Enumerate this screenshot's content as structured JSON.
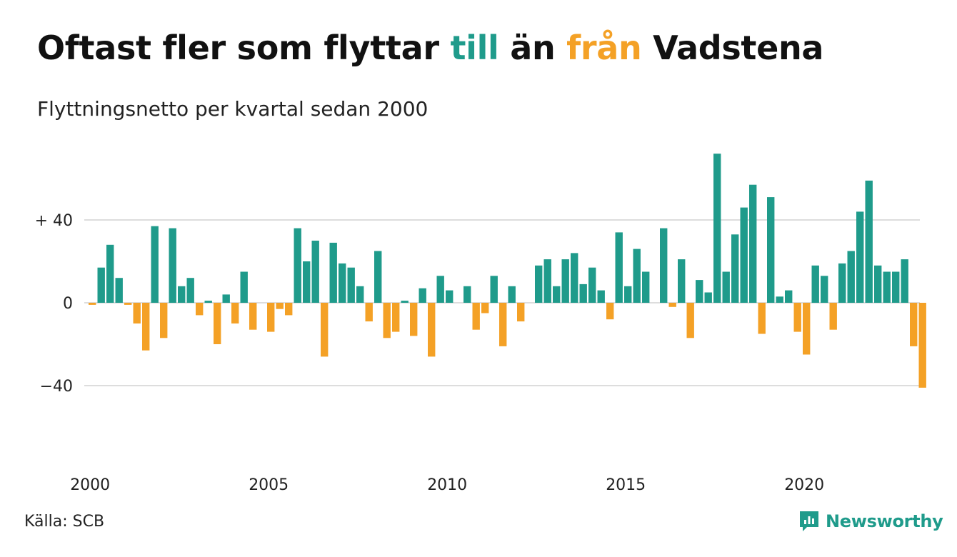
{
  "title": {
    "part1": "Oftast fler som flyttar ",
    "highlight_pos": "till",
    "part2": " än ",
    "highlight_neg": "från",
    "part3": " Vadstena"
  },
  "subtitle": "Flyttningsnetto per kvartal sedan 2000",
  "source": "Källa: SCB",
  "brand": "Newsworthy",
  "colors": {
    "positive": "#1f9b8b",
    "negative": "#f4a126",
    "grid": "#dddddd",
    "text": "#222222"
  },
  "chart_data": {
    "type": "bar",
    "title": "Oftast fler som flyttar till än från Vadstena",
    "subtitle": "Flyttningsnetto per kvartal sedan 2000",
    "x_start_year": 2000,
    "periods_per_year": 4,
    "x_tick_labels": [
      "2000",
      "2005",
      "2010",
      "2015",
      "2020"
    ],
    "y_ticks": [
      {
        "value": 40,
        "label": "+ 40"
      },
      {
        "value": 0,
        "label": "0"
      },
      {
        "value": -40,
        "label": "−40"
      }
    ],
    "ylim": [
      -70,
      70
    ],
    "grid": true,
    "values": [
      -1,
      17,
      28,
      12,
      -1,
      -10,
      -23,
      37,
      -17,
      36,
      8,
      12,
      -6,
      1,
      -20,
      4,
      -10,
      15,
      -13,
      0,
      -14,
      -3,
      -6,
      36,
      20,
      30,
      -26,
      29,
      19,
      17,
      8,
      -9,
      25,
      -17,
      -14,
      1,
      -16,
      7,
      -26,
      13,
      6,
      0,
      8,
      -13,
      -5,
      13,
      -21,
      8,
      -9,
      0,
      18,
      21,
      8,
      21,
      24,
      9,
      17,
      6,
      -8,
      34,
      8,
      26,
      15,
      0,
      36,
      -2,
      21,
      -17,
      11,
      5,
      72,
      15,
      33,
      46,
      57,
      -15,
      51,
      3,
      6,
      -14,
      -25,
      18,
      13,
      -13,
      19,
      25,
      44,
      59,
      18,
      15,
      15,
      21,
      -21,
      -41
    ]
  }
}
